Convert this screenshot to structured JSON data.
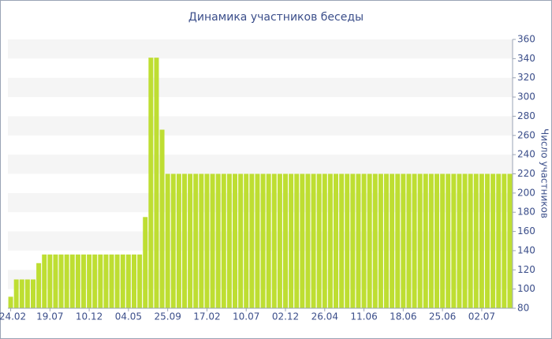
{
  "chart_data": {
    "type": "bar",
    "title": "Динамика участников беседы",
    "y_axis_label": "Число участников",
    "categories": [
      "24.02",
      null,
      null,
      null,
      null,
      null,
      null,
      "19.07",
      null,
      null,
      null,
      null,
      null,
      null,
      "10.12",
      null,
      null,
      null,
      null,
      null,
      null,
      "04.05",
      null,
      null,
      null,
      null,
      null,
      null,
      "25.09",
      null,
      null,
      null,
      null,
      null,
      null,
      "17.02",
      null,
      null,
      null,
      null,
      null,
      null,
      "10.07",
      null,
      null,
      null,
      null,
      null,
      null,
      "02.12",
      null,
      null,
      null,
      null,
      null,
      null,
      "26.04",
      null,
      null,
      null,
      null,
      null,
      null,
      "11.06",
      null,
      null,
      null,
      null,
      null,
      null,
      "18.06",
      null,
      null,
      null,
      null,
      null,
      null,
      "25.06",
      null,
      null,
      null,
      null,
      null,
      null,
      "02.07",
      null,
      null,
      null,
      null,
      null
    ],
    "values": [
      92,
      110,
      110,
      110,
      110,
      127,
      136,
      136,
      136,
      136,
      136,
      136,
      136,
      136,
      136,
      136,
      136,
      136,
      136,
      136,
      136,
      136,
      136,
      136,
      175,
      341,
      341,
      266,
      220,
      220,
      220,
      220,
      220,
      220,
      220,
      220,
      220,
      220,
      220,
      220,
      220,
      220,
      220,
      220,
      220,
      220,
      220,
      220,
      220,
      220,
      220,
      220,
      220,
      220,
      220,
      220,
      220,
      220,
      220,
      220,
      220,
      220,
      220,
      220,
      220,
      220,
      220,
      220,
      220,
      220,
      220,
      220,
      220,
      220,
      220,
      220,
      220,
      220,
      220,
      220,
      220,
      220,
      220,
      220,
      220,
      220,
      220,
      220,
      220,
      220
    ],
    "color": "#bede32",
    "ylim": [
      80,
      360
    ],
    "yticks": [
      80,
      100,
      120,
      140,
      160,
      180,
      200,
      220,
      240,
      260,
      280,
      300,
      320,
      340,
      360
    ],
    "y_axis_side": "right",
    "grid": "bands"
  }
}
